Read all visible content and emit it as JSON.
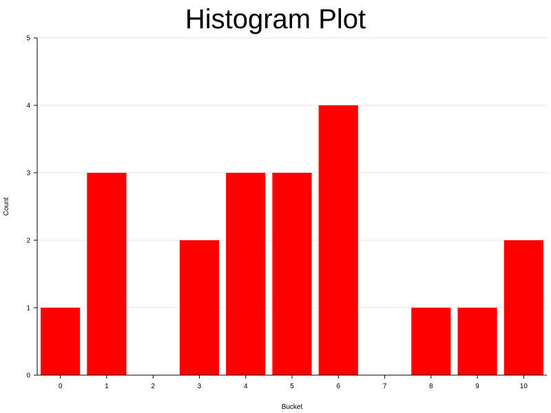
{
  "chart_data": {
    "type": "bar",
    "title": "Histogram Plot",
    "xlabel": "Bucket",
    "ylabel": "Count",
    "categories": [
      "0",
      "1",
      "2",
      "3",
      "4",
      "5",
      "6",
      "7",
      "8",
      "9",
      "10"
    ],
    "values": [
      1,
      3,
      0,
      2,
      3,
      3,
      4,
      0,
      1,
      1,
      2
    ],
    "ylim": [
      0,
      5
    ],
    "yticks": [
      0,
      1,
      2,
      3,
      4,
      5
    ],
    "grid": true,
    "legend": "none",
    "bar_color": "#ff0000",
    "grid_color": "#e6e6e6",
    "axis_color": "#000000"
  }
}
